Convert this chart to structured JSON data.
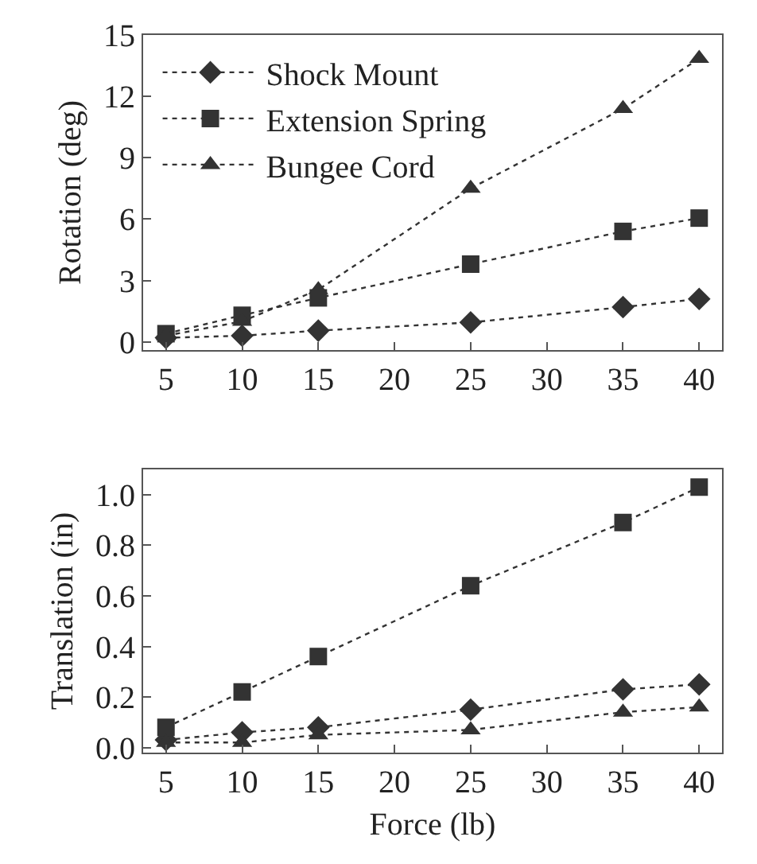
{
  "chart_data": [
    {
      "type": "line",
      "ylabel": "Rotation (deg)",
      "x": [
        5,
        10,
        15,
        25,
        35,
        40
      ],
      "xlim": [
        3.5,
        41.5
      ],
      "xticks": [
        5,
        10,
        15,
        20,
        25,
        30,
        35,
        40
      ],
      "ylim": [
        -0.4,
        15
      ],
      "yticks": [
        0,
        3,
        6,
        9,
        12,
        15
      ],
      "grid": false,
      "legend": "top left",
      "line_style": "dotted",
      "series": [
        {
          "name": "Shock Mount",
          "color": "#333333",
          "marker": "diamond",
          "values": [
            0.2,
            0.3,
            0.55,
            0.95,
            1.7,
            2.1
          ]
        },
        {
          "name": "Extension Spring",
          "color": "#333333",
          "marker": "square",
          "values": [
            0.4,
            1.3,
            2.15,
            3.8,
            5.4,
            6.05
          ]
        },
        {
          "name": "Bungee Cord",
          "color": "#333333",
          "marker": "triangle",
          "values": [
            0.3,
            1.0,
            2.55,
            7.5,
            11.4,
            13.85
          ]
        }
      ]
    },
    {
      "type": "line",
      "xlabel": "Force (lb)",
      "ylabel": "Translation (in)",
      "x": [
        5,
        10,
        15,
        25,
        35,
        40
      ],
      "xlim": [
        3.5,
        41.5
      ],
      "xticks": [
        5,
        10,
        15,
        20,
        25,
        30,
        35,
        40
      ],
      "ylim": [
        -0.02,
        1.1
      ],
      "yticks": [
        {
          "value": 0,
          "label": "0.0"
        },
        0.2,
        0.4,
        0.6,
        0.8,
        {
          "value": 1,
          "label": "1.0"
        }
      ],
      "grid": false,
      "legend": false,
      "line_style": "dotted",
      "series": [
        {
          "color": "#333333",
          "marker": "diamond",
          "values": [
            0.03,
            0.06,
            0.08,
            0.15,
            0.23,
            0.25
          ]
        },
        {
          "color": "#333333",
          "marker": "square",
          "values": [
            0.08,
            0.22,
            0.36,
            0.64,
            0.89,
            1.03
          ]
        },
        {
          "color": "#333333",
          "marker": "triangle",
          "values": [
            0.02,
            0.02,
            0.05,
            0.07,
            0.14,
            0.16
          ]
        }
      ]
    }
  ]
}
